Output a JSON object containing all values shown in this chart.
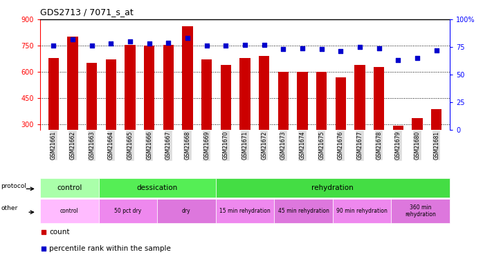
{
  "title": "GDS2713 / 7071_s_at",
  "samples": [
    "GSM21661",
    "GSM21662",
    "GSM21663",
    "GSM21664",
    "GSM21665",
    "GSM21666",
    "GSM21667",
    "GSM21668",
    "GSM21669",
    "GSM21670",
    "GSM21671",
    "GSM21672",
    "GSM21673",
    "GSM21674",
    "GSM21675",
    "GSM21676",
    "GSM21677",
    "GSM21678",
    "GSM21679",
    "GSM21680",
    "GSM21681"
  ],
  "counts": [
    680,
    800,
    650,
    670,
    755,
    750,
    755,
    860,
    670,
    640,
    680,
    690,
    600,
    600,
    600,
    570,
    640,
    630,
    295,
    335,
    390
  ],
  "percentile_ranks": [
    76,
    82,
    76,
    78,
    80,
    78,
    79,
    83,
    76,
    76,
    77,
    77,
    73,
    74,
    73,
    71,
    75,
    74,
    63,
    65,
    72
  ],
  "ylim_left": [
    270,
    900
  ],
  "ylim_right": [
    0,
    100
  ],
  "yticks_left": [
    300,
    450,
    600,
    750,
    900
  ],
  "yticks_right": [
    0,
    25,
    50,
    75,
    100
  ],
  "bar_color": "#cc0000",
  "dot_color": "#0000cc",
  "bg_color": "#ffffff",
  "protocol_groups": [
    {
      "text": "control",
      "start": 0,
      "end": 3,
      "color": "#aaffaa"
    },
    {
      "text": "dessication",
      "start": 3,
      "end": 9,
      "color": "#55ee55"
    },
    {
      "text": "rehydration",
      "start": 9,
      "end": 21,
      "color": "#44dd44"
    }
  ],
  "other_groups": [
    {
      "text": "control",
      "start": 0,
      "end": 3,
      "color": "#ffbbff"
    },
    {
      "text": "50 pct dry",
      "start": 3,
      "end": 6,
      "color": "#ee88ee"
    },
    {
      "text": "dry",
      "start": 6,
      "end": 9,
      "color": "#dd77dd"
    },
    {
      "text": "15 min rehydration",
      "start": 9,
      "end": 12,
      "color": "#ee88ee"
    },
    {
      "text": "45 min rehydration",
      "start": 12,
      "end": 15,
      "color": "#dd77dd"
    },
    {
      "text": "90 min rehydration",
      "start": 15,
      "end": 18,
      "color": "#ee88ee"
    },
    {
      "text": "360 min\nrehydration",
      "start": 18,
      "end": 21,
      "color": "#dd77dd"
    }
  ],
  "tick_label_bg": "#dddddd"
}
